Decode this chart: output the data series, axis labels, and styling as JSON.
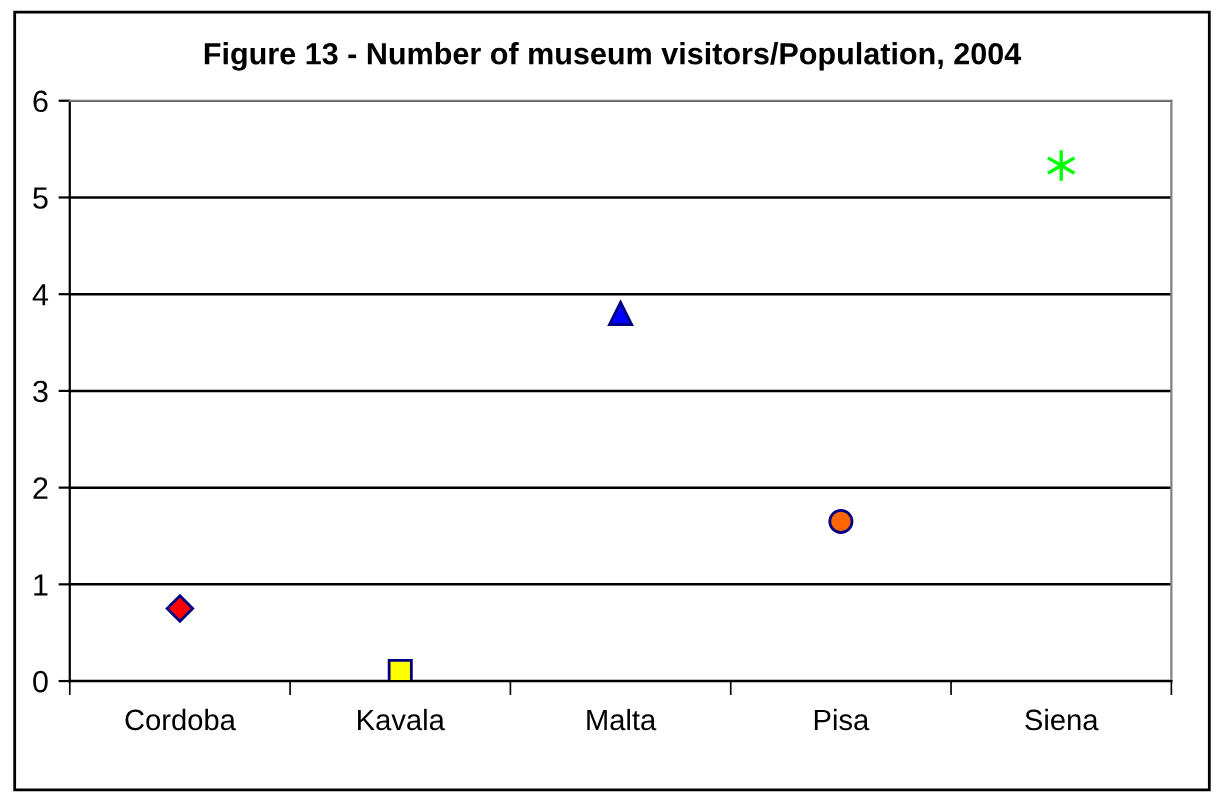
{
  "chart_data": {
    "type": "scatter",
    "title": "Figure 13 - Number of museum visitors/Population, 2004",
    "categories": [
      "Cordoba",
      "Kavala",
      "Malta",
      "Pisa",
      "Siena"
    ],
    "series": [
      {
        "color": "#ff0000",
        "marker": "diamond",
        "values": [
          0.75,
          null,
          null,
          null,
          null
        ]
      },
      {
        "color": "#ffff00",
        "marker": "square",
        "values": [
          null,
          0.1,
          null,
          null,
          null
        ]
      },
      {
        "color": "#0000ff",
        "marker": "triangle",
        "values": [
          null,
          null,
          3.8,
          null,
          null
        ]
      },
      {
        "color": "#ff6600",
        "marker": "circle",
        "values": [
          null,
          null,
          null,
          1.65,
          null
        ]
      },
      {
        "color": "#00ff00",
        "marker": "cross",
        "values": [
          null,
          null,
          null,
          null,
          5.33
        ]
      }
    ],
    "ylim": [
      0,
      6
    ],
    "yticks": [
      0,
      1,
      2,
      3,
      4,
      5,
      6
    ],
    "grid": "y",
    "legend": false
  }
}
